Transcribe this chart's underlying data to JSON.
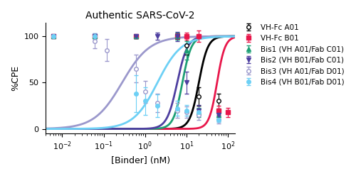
{
  "title": "Authentic SARS-CoV-2",
  "xlabel": "[Binder] (nM)",
  "ylabel": "%CPE",
  "xlim": [
    0.004,
    150
  ],
  "ylim": [
    -5,
    115
  ],
  "yticks": [
    0,
    50,
    100
  ],
  "series": [
    {
      "label": "VH-Fc A01",
      "color": "#000000",
      "marker": "o",
      "markerfacecolor": "white",
      "markeredgecolor": "#000000",
      "linewidth": 2.0,
      "EC50": 20.0,
      "Hill": 4.0,
      "top": 100,
      "bottom": 0,
      "data_x": [
        0.006,
        0.06,
        0.6,
        6,
        10,
        20,
        60
      ],
      "data_y": [
        100,
        100,
        100,
        100,
        90,
        35,
        30
      ],
      "data_yerr": [
        1,
        1,
        2,
        3,
        10,
        10,
        8
      ]
    },
    {
      "label": "VH-Fc B01",
      "color": "#e8174b",
      "marker": "s",
      "markerfacecolor": "#e8174b",
      "markeredgecolor": "#e8174b",
      "linewidth": 2.0,
      "EC50": 55.0,
      "Hill": 4.5,
      "top": 100,
      "bottom": 0,
      "data_x": [
        0.006,
        0.06,
        0.6,
        6,
        10,
        20,
        60,
        100
      ],
      "data_y": [
        100,
        100,
        100,
        100,
        100,
        100,
        20,
        18
      ],
      "data_yerr": [
        1,
        1,
        2,
        3,
        4,
        6,
        5,
        5
      ]
    },
    {
      "label": "Bis1 (VH A01/Fab C01)",
      "color": "#1d9f74",
      "marker": "^",
      "markerfacecolor": "#1d9f74",
      "markeredgecolor": "#1d9f74",
      "linewidth": 2.0,
      "EC50": 8.0,
      "Hill": 4.0,
      "top": 100,
      "bottom": 0,
      "data_x": [
        0.006,
        0.06,
        0.6,
        6,
        10,
        20,
        60
      ],
      "data_y": [
        100,
        100,
        100,
        100,
        85,
        18,
        15
      ],
      "data_yerr": [
        1,
        1,
        2,
        4,
        10,
        5,
        4
      ]
    },
    {
      "label": "Bis2 (VH B01/Fab C01)",
      "color": "#4e3fa0",
      "marker": "v",
      "markerfacecolor": "#4e3fa0",
      "markeredgecolor": "#4e3fa0",
      "linewidth": 2.0,
      "EC50": 6.0,
      "Hill": 3.5,
      "top": 100,
      "bottom": 0,
      "data_x": [
        0.006,
        0.06,
        0.6,
        2,
        6,
        10,
        20,
        60
      ],
      "data_y": [
        100,
        100,
        100,
        100,
        100,
        50,
        20,
        15
      ],
      "data_yerr": [
        1,
        1,
        2,
        4,
        5,
        12,
        6,
        5
      ]
    },
    {
      "label": "Bis3 (VH A01/Fab D01)",
      "color": "#9b98cc",
      "marker": "o",
      "markerfacecolor": "white",
      "markeredgecolor": "#9b98cc",
      "linewidth": 2.0,
      "EC50": 0.28,
      "Hill": 1.3,
      "top": 100,
      "bottom": 0,
      "data_x": [
        0.006,
        0.06,
        0.12,
        0.6,
        1.0,
        2.0,
        6.0,
        10,
        20,
        60
      ],
      "data_y": [
        100,
        95,
        85,
        65,
        40,
        28,
        20,
        18,
        15,
        10
      ],
      "data_yerr": [
        2,
        8,
        12,
        15,
        12,
        10,
        8,
        6,
        5,
        4
      ]
    },
    {
      "label": "Bis4 (VH B01/Fab D01)",
      "color": "#6dd0f5",
      "marker": "o",
      "markerfacecolor": "#6dd0f5",
      "markeredgecolor": "#6dd0f5",
      "linewidth": 2.0,
      "EC50": 2.0,
      "Hill": 1.5,
      "top": 100,
      "bottom": 0,
      "data_x": [
        0.006,
        0.06,
        0.6,
        1.0,
        2.0,
        6.0,
        10,
        20,
        60
      ],
      "data_y": [
        100,
        100,
        38,
        30,
        25,
        22,
        20,
        18,
        10
      ],
      "data_yerr": [
        2,
        3,
        20,
        15,
        12,
        8,
        6,
        4,
        3
      ]
    }
  ],
  "legend_labels": [
    "VH-Fc A01",
    "VH-Fc B01",
    "Bis1 (VH A01/Fab C01)",
    "Bis2 (VH B01/Fab C01)",
    "Bis3 (VH A01/Fab D01)",
    "Bis4 (VH B01/Fab D01)"
  ]
}
